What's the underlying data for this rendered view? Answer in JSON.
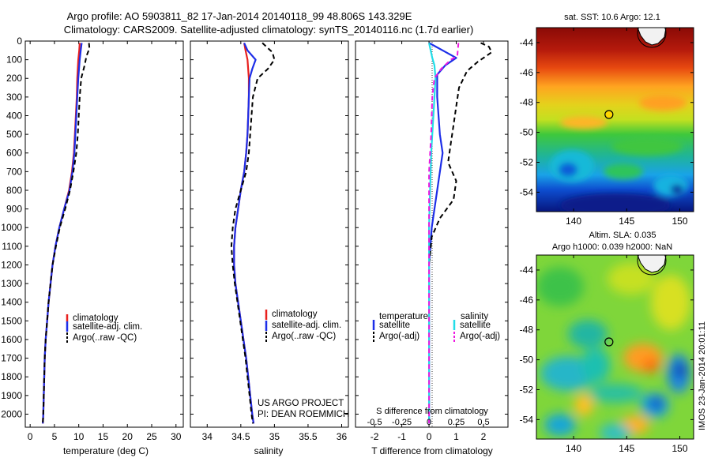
{
  "header": {
    "title_line1": "Argo profile: AO 5903811_82 17-Jan-2014 20140118_99 48.806S 143.329E",
    "title_line2": "Climatology: CARS2009. Satellite-adjusted climatology: synTS_20140116.nc (1.7d earlier)"
  },
  "credits": {
    "project": "US ARGO PROJECT",
    "pi": "PI: DEAN ROEMMICH",
    "imos_stamp": "IMOS 23-Jan-2014 20:01:11"
  },
  "colors": {
    "climatology": "#e8201e",
    "satellite": "#1d2ee8",
    "argo": "#000000",
    "satellite_salinity": "#22dde8",
    "argo_salinity": "#ee18e0"
  },
  "chart_data": [
    {
      "id": "temperature",
      "type": "line",
      "xlabel": "temperature (deg C)",
      "ylabel": "",
      "xlim": [
        -1,
        31.5
      ],
      "ylim": [
        2070,
        0
      ],
      "xticks": [
        0,
        5,
        10,
        15,
        20,
        25,
        30
      ],
      "yticks": [
        0,
        100,
        200,
        300,
        400,
        500,
        600,
        700,
        800,
        900,
        1000,
        1100,
        1200,
        1300,
        1400,
        1500,
        1600,
        1700,
        1800,
        1900,
        2000
      ],
      "legend_position": "lower-right",
      "legend": [
        "climatology",
        "satellite-adj. clim.",
        "Argo(..raw -QC)"
      ],
      "series": [
        {
          "name": "climatology",
          "color_key": "climatology",
          "dash": "solid",
          "points": [
            [
              10.2,
              10
            ],
            [
              10.1,
              50
            ],
            [
              9.9,
              100
            ],
            [
              9.7,
              200
            ],
            [
              9.6,
              300
            ],
            [
              9.4,
              400
            ],
            [
              9.2,
              500
            ],
            [
              9.0,
              600
            ],
            [
              8.6,
              700
            ],
            [
              8.0,
              800
            ],
            [
              7.0,
              900
            ],
            [
              6.0,
              1000
            ],
            [
              5.2,
              1100
            ],
            [
              4.6,
              1200
            ],
            [
              4.2,
              1300
            ],
            [
              3.8,
              1400
            ],
            [
              3.5,
              1500
            ],
            [
              3.2,
              1600
            ],
            [
              3.0,
              1700
            ],
            [
              2.9,
              1800
            ],
            [
              2.8,
              1900
            ],
            [
              2.7,
              2000
            ],
            [
              2.6,
              2050
            ]
          ]
        },
        {
          "name": "satellite-adj. clim.",
          "color_key": "satellite",
          "dash": "solid",
          "points": [
            [
              10.6,
              10
            ],
            [
              10.4,
              50
            ],
            [
              10.2,
              100
            ],
            [
              9.9,
              200
            ],
            [
              9.7,
              300
            ],
            [
              9.5,
              400
            ],
            [
              9.3,
              500
            ],
            [
              9.1,
              600
            ],
            [
              8.7,
              700
            ],
            [
              8.1,
              800
            ],
            [
              7.0,
              900
            ],
            [
              6.0,
              1000
            ],
            [
              5.2,
              1100
            ],
            [
              4.6,
              1200
            ],
            [
              4.2,
              1300
            ],
            [
              3.8,
              1400
            ],
            [
              3.5,
              1500
            ],
            [
              3.2,
              1600
            ],
            [
              3.0,
              1700
            ],
            [
              2.9,
              1800
            ],
            [
              2.8,
              1900
            ],
            [
              2.7,
              2000
            ],
            [
              2.6,
              2050
            ]
          ]
        },
        {
          "name": "Argo(..raw -QC)",
          "color_key": "argo",
          "dash": "dash",
          "points": [
            [
              12.1,
              10
            ],
            [
              12.2,
              40
            ],
            [
              11.6,
              80
            ],
            [
              11.2,
              130
            ],
            [
              10.5,
              200
            ],
            [
              10.2,
              300
            ],
            [
              10.0,
              400
            ],
            [
              9.8,
              500
            ],
            [
              9.5,
              600
            ],
            [
              8.9,
              700
            ],
            [
              8.2,
              800
            ],
            [
              7.2,
              900
            ],
            [
              6.1,
              1000
            ],
            [
              5.3,
              1100
            ],
            [
              4.6,
              1200
            ],
            [
              4.2,
              1300
            ],
            [
              3.8,
              1400
            ],
            [
              3.5,
              1500
            ],
            [
              3.2,
              1600
            ],
            [
              3.0,
              1700
            ],
            [
              2.9,
              1800
            ],
            [
              2.8,
              1900
            ],
            [
              2.7,
              2000
            ],
            [
              2.6,
              2050
            ]
          ]
        }
      ]
    },
    {
      "id": "salinity",
      "type": "line",
      "xlabel": "salinity",
      "ylabel": "",
      "xlim": [
        33.75,
        36.1
      ],
      "ylim": [
        2070,
        0
      ],
      "xticks": [
        34,
        34.5,
        35,
        35.5,
        36
      ],
      "legend_position": "lower-right",
      "legend": [
        "climatology",
        "satellite-adj. clim.",
        "Argo(..raw -QC)"
      ],
      "series": [
        {
          "name": "climatology",
          "color_key": "climatology",
          "dash": "solid",
          "points": [
            [
              34.55,
              10
            ],
            [
              34.57,
              50
            ],
            [
              34.6,
              100
            ],
            [
              34.62,
              200
            ],
            [
              34.62,
              300
            ],
            [
              34.61,
              400
            ],
            [
              34.6,
              500
            ],
            [
              34.58,
              600
            ],
            [
              34.55,
              700
            ],
            [
              34.5,
              800
            ],
            [
              34.46,
              900
            ],
            [
              34.42,
              1000
            ],
            [
              34.4,
              1100
            ],
            [
              34.4,
              1200
            ],
            [
              34.42,
              1300
            ],
            [
              34.46,
              1400
            ],
            [
              34.5,
              1500
            ],
            [
              34.54,
              1600
            ],
            [
              34.58,
              1700
            ],
            [
              34.61,
              1800
            ],
            [
              34.64,
              1900
            ],
            [
              34.67,
              2000
            ],
            [
              34.69,
              2050
            ]
          ]
        },
        {
          "name": "satellite-adj. clim.",
          "color_key": "satellite",
          "dash": "solid",
          "points": [
            [
              34.55,
              10
            ],
            [
              34.6,
              50
            ],
            [
              34.72,
              100
            ],
            [
              34.67,
              150
            ],
            [
              34.63,
              200
            ],
            [
              34.62,
              300
            ],
            [
              34.61,
              400
            ],
            [
              34.6,
              500
            ],
            [
              34.58,
              600
            ],
            [
              34.55,
              700
            ],
            [
              34.5,
              800
            ],
            [
              34.46,
              900
            ],
            [
              34.42,
              1000
            ],
            [
              34.4,
              1100
            ],
            [
              34.4,
              1200
            ],
            [
              34.42,
              1300
            ],
            [
              34.46,
              1400
            ],
            [
              34.5,
              1500
            ],
            [
              34.54,
              1600
            ],
            [
              34.58,
              1700
            ],
            [
              34.61,
              1800
            ],
            [
              34.64,
              1900
            ],
            [
              34.67,
              2000
            ],
            [
              34.69,
              2050
            ]
          ]
        },
        {
          "name": "Argo(..raw -QC)",
          "color_key": "argo",
          "dash": "dash",
          "points": [
            [
              34.82,
              10
            ],
            [
              34.97,
              60
            ],
            [
              35.0,
              100
            ],
            [
              34.9,
              150
            ],
            [
              34.75,
              200
            ],
            [
              34.68,
              300
            ],
            [
              34.66,
              400
            ],
            [
              34.64,
              500
            ],
            [
              34.62,
              600
            ],
            [
              34.58,
              700
            ],
            [
              34.5,
              800
            ],
            [
              34.42,
              900
            ],
            [
              34.38,
              1000
            ],
            [
              34.36,
              1100
            ],
            [
              34.38,
              1200
            ],
            [
              34.41,
              1300
            ],
            [
              34.45,
              1400
            ],
            [
              34.49,
              1500
            ],
            [
              34.53,
              1600
            ],
            [
              34.57,
              1700
            ],
            [
              34.6,
              1800
            ],
            [
              34.63,
              1900
            ],
            [
              34.66,
              2000
            ],
            [
              34.68,
              2050
            ]
          ]
        }
      ]
    },
    {
      "id": "difference",
      "type": "line",
      "xlabel": "T difference from climatology",
      "xlabel_top": "S difference from climatology",
      "xlim": [
        -2.7,
        2.9
      ],
      "ylim": [
        2070,
        0
      ],
      "xticks": [
        -2,
        -1,
        0,
        1,
        2
      ],
      "xticks_top": [
        "-0.5",
        "-0.25",
        "0",
        "0.25",
        "0.5"
      ],
      "legend_position": "lower-center",
      "legend_titles": [
        "temperature",
        "salinity"
      ],
      "legend": [
        "satellite",
        "Argo(-adj)",
        "satellite",
        "Argo(-adj)"
      ],
      "series": [
        {
          "name": "satellite",
          "group": "temperature",
          "color_key": "satellite",
          "dash": "solid",
          "points": [
            [
              0.0,
              10
            ],
            [
              0.5,
              50
            ],
            [
              1.0,
              90
            ],
            [
              0.6,
              130
            ],
            [
              0.3,
              180
            ],
            [
              0.3,
              300
            ],
            [
              0.4,
              500
            ],
            [
              0.5,
              600
            ],
            [
              0.3,
              800
            ],
            [
              0.1,
              1000
            ],
            [
              0.0,
              1200
            ],
            [
              0.0,
              2050
            ]
          ]
        },
        {
          "name": "Argo(-adj)",
          "group": "temperature",
          "color_key": "argo",
          "dash": "dash",
          "points": [
            [
              1.9,
              10
            ],
            [
              2.2,
              30
            ],
            [
              2.3,
              60
            ],
            [
              2.0,
              90
            ],
            [
              1.8,
              110
            ],
            [
              1.4,
              160
            ],
            [
              1.1,
              250
            ],
            [
              1.0,
              350
            ],
            [
              0.9,
              450
            ],
            [
              0.8,
              550
            ],
            [
              0.7,
              650
            ],
            [
              1.0,
              750
            ],
            [
              0.9,
              850
            ],
            [
              0.4,
              950
            ],
            [
              0.1,
              1050
            ],
            [
              0.0,
              1200
            ],
            [
              0.0,
              2050
            ]
          ]
        },
        {
          "name": "satellite",
          "group": "salinity",
          "color_key": "satellite_salinity",
          "dash": "solid",
          "points": [
            [
              0.0,
              10
            ],
            [
              0.03,
              90
            ],
            [
              0.05,
              130
            ],
            [
              0.06,
              200
            ],
            [
              0.04,
              400
            ],
            [
              0.02,
              600
            ],
            [
              0.01,
              800
            ],
            [
              0.0,
              1000
            ],
            [
              0.0,
              2050
            ]
          ]
        },
        {
          "name": "Argo(-adj)",
          "group": "salinity",
          "color_key": "argo_salinity",
          "dash": "dash",
          "points": [
            [
              0.27,
              10
            ],
            [
              0.26,
              80
            ],
            [
              0.2,
              100
            ],
            [
              0.11,
              150
            ],
            [
              0.05,
              200
            ],
            [
              0.03,
              300
            ],
            [
              0.02,
              500
            ],
            [
              0.0,
              700
            ],
            [
              0.0,
              1000
            ],
            [
              0.0,
              2050
            ]
          ]
        }
      ]
    },
    {
      "id": "sst_map",
      "type": "heatmap",
      "title": "sat. SST: 10.6  Argo: 12.1",
      "xlim": [
        136.5,
        151.3
      ],
      "ylim": [
        -55.3,
        -43.0
      ],
      "xticks": [
        140,
        145,
        150
      ],
      "yticks": [
        -44,
        -46,
        -48,
        -50,
        -52,
        -54
      ],
      "marker": {
        "lon": 143.329,
        "lat": -48.806,
        "fill": "#ffd600"
      },
      "land": {
        "lon": 146.8,
        "lat": -43.4
      }
    },
    {
      "id": "sla_map",
      "type": "heatmap",
      "title": "Altim. SLA: 0.035",
      "subtitle": "Argo h1000: 0.039 h2000: NaN",
      "xlim": [
        136.5,
        151.3
      ],
      "ylim": [
        -55.3,
        -43.0
      ],
      "xticks": [
        140,
        145,
        150
      ],
      "yticks": [
        -44,
        -46,
        -48,
        -50,
        -52,
        -54
      ],
      "marker": {
        "lon": 143.329,
        "lat": -48.806,
        "fill": "none"
      },
      "land": {
        "lon": 146.8,
        "lat": -43.4
      }
    }
  ]
}
